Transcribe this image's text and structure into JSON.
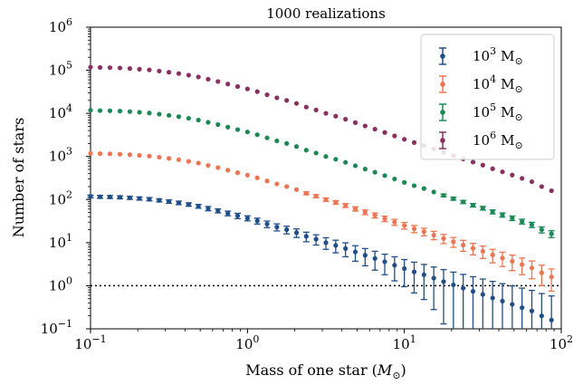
{
  "chart_data": {
    "type": "scatter",
    "title": "1000 realizations",
    "xlabel": "Mass of one star (",
    "xlabel_symbol": "M",
    "xlabel_sub": "⊙",
    "xlabel_end": ")",
    "ylabel": "Number of stars",
    "x_scale": "log",
    "y_scale": "log",
    "xlim": [
      0.1,
      100
    ],
    "ylim": [
      0.1,
      1000000
    ],
    "x_ticks": [
      {
        "value": 0.1,
        "base": "10",
        "exp": "−1"
      },
      {
        "value": 1,
        "base": "10",
        "exp": "0"
      },
      {
        "value": 10,
        "base": "10",
        "exp": "1"
      },
      {
        "value": 100,
        "base": "10",
        "exp": "2"
      }
    ],
    "y_ticks": [
      {
        "value": 0.1,
        "base": "10",
        "exp": "−1"
      },
      {
        "value": 1,
        "base": "10",
        "exp": "0"
      },
      {
        "value": 10,
        "base": "10",
        "exp": "1"
      },
      {
        "value": 100,
        "base": "10",
        "exp": "2"
      },
      {
        "value": 1000,
        "base": "10",
        "exp": "3"
      },
      {
        "value": 10000,
        "base": "10",
        "exp": "4"
      },
      {
        "value": 100000,
        "base": "10",
        "exp": "5"
      },
      {
        "value": 1000000,
        "base": "10",
        "exp": "6"
      }
    ],
    "reference_line": {
      "y": 1,
      "style": "dotted"
    },
    "grid": false,
    "legend_position": "top-right",
    "x": [
      0.1,
      0.115,
      0.133,
      0.154,
      0.178,
      0.205,
      0.237,
      0.274,
      0.316,
      0.365,
      0.422,
      0.487,
      0.562,
      0.649,
      0.75,
      0.866,
      1.0,
      1.155,
      1.334,
      1.54,
      1.778,
      2.054,
      2.371,
      2.738,
      3.162,
      3.652,
      4.217,
      4.87,
      5.623,
      6.494,
      7.499,
      8.66,
      10.0,
      11.548,
      13.335,
      15.399,
      17.783,
      20.535,
      23.714,
      27.384,
      31.623,
      36.517,
      42.17,
      48.697,
      56.234,
      64.938,
      74.989,
      86.596
    ],
    "series": [
      {
        "name_base": "10",
        "name_exp": "3",
        "name_unit": "M",
        "name_sub": "⊙",
        "color": "#1f4e8c",
        "values": [
          118,
          116,
          115,
          113,
          110,
          106,
          102,
          96,
          90,
          84,
          77,
          70,
          62,
          55,
          48,
          42,
          37,
          32,
          27,
          23,
          20,
          17,
          14,
          12,
          10,
          8.6,
          7.3,
          6.1,
          5.1,
          4.3,
          3.6,
          3.0,
          2.5,
          2.1,
          1.8,
          1.5,
          1.25,
          1.05,
          0.88,
          0.74,
          0.63,
          0.52,
          0.44,
          0.37,
          0.31,
          0.26,
          0.2,
          0.16
        ],
        "err_low": [
          9,
          9,
          9,
          9,
          9,
          9,
          9,
          8,
          8,
          8,
          7,
          7,
          7,
          6,
          6,
          6,
          5,
          5,
          4.7,
          4.3,
          4.0,
          3.8,
          3.5,
          3.2,
          3.0,
          2.8,
          2.6,
          2.4,
          2.2,
          2.0,
          1.8,
          1.7,
          1.55,
          1.42,
          1.32,
          1.22,
          1.12,
          1.02,
          0.88,
          0.74,
          0.63,
          0.52,
          0.44,
          0.37,
          0.31,
          0.26,
          0.2,
          0.16
        ],
        "err_high": [
          9,
          9,
          9,
          9,
          9,
          9,
          9,
          8,
          8,
          8,
          7,
          7,
          7,
          6,
          6,
          6,
          5,
          5,
          4.7,
          4.3,
          4.0,
          3.8,
          3.5,
          3.2,
          3.0,
          2.8,
          2.6,
          2.4,
          2.2,
          2.0,
          1.8,
          1.7,
          1.55,
          1.42,
          1.32,
          1.22,
          1.12,
          1.02,
          0.95,
          0.88,
          0.8,
          0.74,
          0.68,
          0.62,
          0.57,
          0.52,
          0.46,
          0.42
        ]
      },
      {
        "name_base": "10",
        "name_exp": "4",
        "name_unit": "M",
        "name_sub": "⊙",
        "color": "#f2734f",
        "values": [
          1180,
          1160,
          1150,
          1130,
          1100,
          1060,
          1020,
          960,
          900,
          840,
          770,
          700,
          620,
          550,
          480,
          420,
          370,
          320,
          270,
          230,
          200,
          170,
          140,
          120,
          100,
          86,
          73,
          61,
          51,
          43,
          36,
          30,
          25,
          21,
          18,
          15,
          12.5,
          10.5,
          8.8,
          7.4,
          6.3,
          5.2,
          4.4,
          3.7,
          3.1,
          2.6,
          2.0,
          1.6
        ],
        "err_low": [
          30,
          30,
          30,
          30,
          30,
          29,
          28,
          27,
          26,
          25,
          24,
          23,
          22,
          21,
          20,
          18,
          17,
          16,
          15,
          14,
          13,
          12,
          11,
          10,
          9,
          8.3,
          7.6,
          7.0,
          6.4,
          5.8,
          5.3,
          4.8,
          4.4,
          4.0,
          3.6,
          3.3,
          3.0,
          2.7,
          2.5,
          2.2,
          2.0,
          1.8,
          1.6,
          1.45,
          1.3,
          1.15,
          1.0,
          0.85
        ],
        "err_high": [
          30,
          30,
          30,
          30,
          30,
          29,
          28,
          27,
          26,
          25,
          24,
          23,
          22,
          21,
          20,
          18,
          17,
          16,
          15,
          14,
          13,
          12,
          11,
          10,
          9,
          8.3,
          7.6,
          7.0,
          6.4,
          5.8,
          5.3,
          4.8,
          4.4,
          4.0,
          3.6,
          3.3,
          3.0,
          2.7,
          2.5,
          2.2,
          2.0,
          1.8,
          1.6,
          1.45,
          1.3,
          1.15,
          1.0,
          0.85
        ]
      },
      {
        "name_base": "10",
        "name_exp": "5",
        "name_unit": "M",
        "name_sub": "⊙",
        "color": "#1a8a55",
        "values": [
          11800,
          11600,
          11500,
          11300,
          11000,
          10600,
          10200,
          9600,
          9000,
          8400,
          7700,
          7000,
          6200,
          5500,
          4800,
          4200,
          3700,
          3200,
          2700,
          2300,
          2000,
          1700,
          1400,
          1200,
          1000,
          860,
          730,
          610,
          510,
          430,
          360,
          300,
          250,
          210,
          180,
          150,
          125,
          105,
          88,
          74,
          63,
          52,
          44,
          37,
          31,
          26,
          20,
          16
        ],
        "err_low": [
          100,
          100,
          100,
          100,
          100,
          98,
          96,
          93,
          90,
          87,
          84,
          80,
          76,
          72,
          68,
          64,
          60,
          56,
          52,
          48,
          44,
          40,
          37,
          34,
          31,
          28,
          25,
          23,
          21,
          19,
          17,
          15.5,
          14,
          12.5,
          11.3,
          10.2,
          9.2,
          8.3,
          7.5,
          6.8,
          6.1,
          5.5,
          5.0,
          4.5,
          4.0,
          3.6,
          3.2,
          2.9
        ],
        "err_high": [
          100,
          100,
          100,
          100,
          100,
          98,
          96,
          93,
          90,
          87,
          84,
          80,
          76,
          72,
          68,
          64,
          60,
          56,
          52,
          48,
          44,
          40,
          37,
          34,
          31,
          28,
          25,
          23,
          21,
          19,
          17,
          15.5,
          14,
          12.5,
          11.3,
          10.2,
          9.2,
          8.3,
          7.5,
          6.8,
          6.1,
          5.5,
          5.0,
          4.5,
          4.0,
          3.6,
          3.2,
          2.9
        ]
      },
      {
        "name_base": "10",
        "name_exp": "6",
        "name_unit": "M",
        "name_sub": "⊙",
        "color": "#8c2f5f",
        "values": [
          118000,
          116000,
          115000,
          113000,
          110000,
          106000,
          102000,
          96000,
          90000,
          84000,
          77000,
          70000,
          62000,
          55000,
          48000,
          42000,
          37000,
          32000,
          27000,
          23000,
          20000,
          17000,
          14000,
          12000,
          10000,
          8600,
          7300,
          6100,
          5100,
          4300,
          3600,
          3000,
          2500,
          2100,
          1800,
          1500,
          1250,
          1050,
          880,
          740,
          630,
          520,
          440,
          370,
          310,
          260,
          200,
          160
        ],
        "err_low": [
          330,
          330,
          330,
          330,
          325,
          320,
          315,
          305,
          295,
          285,
          275,
          265,
          250,
          235,
          220,
          205,
          190,
          178,
          165,
          152,
          140,
          128,
          118,
          108,
          100,
          92,
          84,
          77,
          70,
          64,
          58,
          53,
          48,
          44,
          40,
          36,
          33,
          30,
          27,
          25,
          22,
          20,
          18,
          16.5,
          15,
          13.5,
          12,
          11
        ],
        "err_high": [
          330,
          330,
          330,
          330,
          325,
          320,
          315,
          305,
          295,
          285,
          275,
          265,
          250,
          235,
          220,
          205,
          190,
          178,
          165,
          152,
          140,
          128,
          118,
          108,
          100,
          92,
          84,
          77,
          70,
          64,
          58,
          53,
          48,
          44,
          40,
          36,
          33,
          30,
          27,
          25,
          22,
          20,
          18,
          16.5,
          15,
          13.5,
          12,
          11
        ]
      }
    ]
  }
}
